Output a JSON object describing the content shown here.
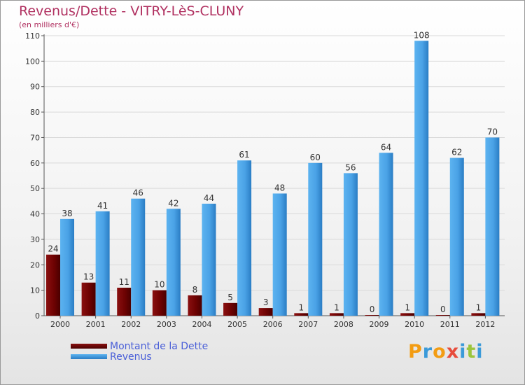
{
  "chart_data": {
    "type": "bar",
    "title": "Revenus/Dette - VITRY-LèS-CLUNY",
    "subtitle": "(en milliers d'€)",
    "categories": [
      "2000",
      "2001",
      "2002",
      "2003",
      "2004",
      "2005",
      "2006",
      "2007",
      "2008",
      "2009",
      "2010",
      "2011",
      "2012"
    ],
    "series": [
      {
        "name": "Montant de la Dette",
        "color": "#6b0000",
        "values": [
          24,
          13,
          11,
          10,
          8,
          5,
          3,
          1,
          1,
          0,
          1,
          0,
          1
        ]
      },
      {
        "name": "Revenus",
        "color": "#3a95dc",
        "values": [
          38,
          41,
          46,
          42,
          44,
          61,
          48,
          60,
          56,
          64,
          108,
          62,
          70
        ]
      }
    ],
    "ylim": [
      0,
      110
    ],
    "yticks": [
      0,
      10,
      20,
      30,
      40,
      50,
      60,
      70,
      80,
      90,
      100,
      110
    ],
    "grid": true,
    "legend_position": "bottom-left"
  },
  "branding": {
    "logo_letters": [
      "P",
      "r",
      "o",
      "x",
      "i",
      "t",
      "i"
    ],
    "logo_colors": [
      "#f39c12",
      "#3a9ad9",
      "#f39c12",
      "#e74c3c",
      "#3a9ad9",
      "#9bc53d",
      "#3a9ad9"
    ]
  }
}
